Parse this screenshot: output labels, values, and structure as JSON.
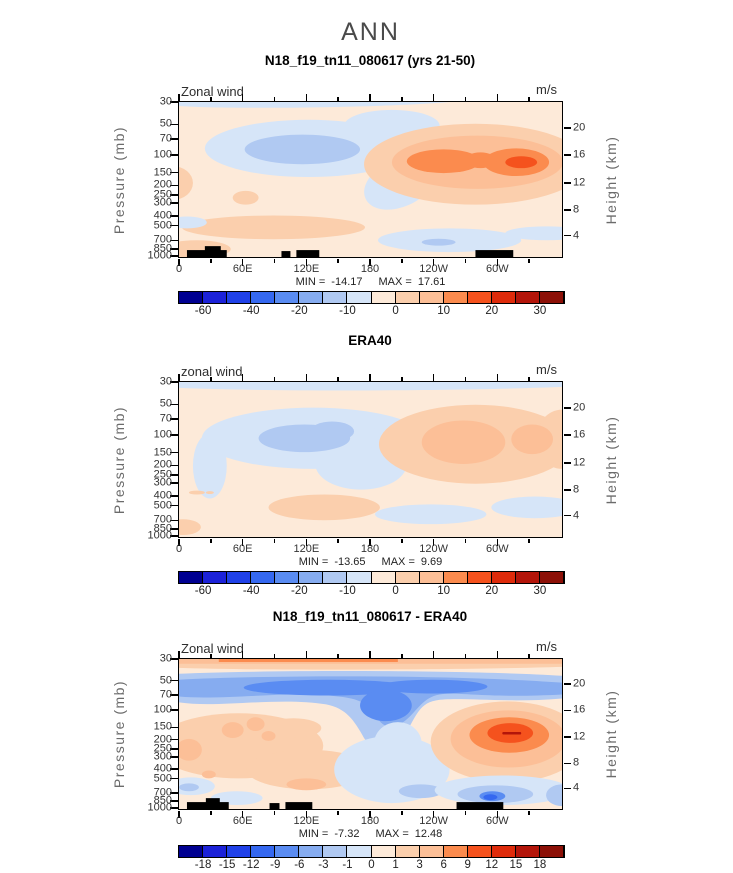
{
  "page_title": "ANN",
  "palette": [
    "#000091",
    "#1c22d8",
    "#2041e8",
    "#3568f0",
    "#5a8cf2",
    "#86acf0",
    "#b0c9f2",
    "#d6e5f8",
    "#fdead9",
    "#fbcfad",
    "#fcbf97",
    "#fb8b4e",
    "#f5521d",
    "#de2b0b",
    "#b3150a",
    "#8c1007"
  ],
  "panels": [
    {
      "title": "N18_f19_tn11_080617 (yrs 21-50)",
      "field_label": "Zonal wind",
      "units_label": "m/s",
      "ylabel_left": "Pressure (mb)",
      "ylabel_right": "Height (km)",
      "yticks_left": [
        "30",
        "50",
        "70",
        "100",
        "150",
        "200",
        "250",
        "300",
        "400",
        "500",
        "700",
        "850",
        "1000"
      ],
      "yticks_right": [
        "20",
        "16",
        "12",
        "8",
        "4"
      ],
      "xticks": [
        "0",
        "60E",
        "120E",
        "180",
        "120W",
        "60W"
      ],
      "min_label": "MIN =",
      "min_value": "-14.17",
      "max_label": "MAX =",
      "max_value": "17.61",
      "colorbar_labels": [
        "-60",
        "-40",
        "-20",
        "-10",
        "0",
        "10",
        "20",
        "30"
      ]
    },
    {
      "title": "ERA40",
      "field_label": "zonal wind",
      "units_label": "m/s",
      "ylabel_left": "Pressure (mb)",
      "ylabel_right": "Height (km)",
      "yticks_left": [
        "30",
        "50",
        "70",
        "100",
        "150",
        "200",
        "250",
        "300",
        "400",
        "500",
        "700",
        "850",
        "1000"
      ],
      "yticks_right": [
        "20",
        "16",
        "12",
        "8",
        "4"
      ],
      "xticks": [
        "0",
        "60E",
        "120E",
        "180",
        "120W",
        "60W"
      ],
      "min_label": "MIN =",
      "min_value": "-13.65",
      "max_label": "MAX =",
      "max_value": "9.69",
      "colorbar_labels": [
        "-60",
        "-40",
        "-20",
        "-10",
        "0",
        "10",
        "20",
        "30"
      ]
    },
    {
      "title": "N18_f19_tn11_080617 - ERA40",
      "field_label": "Zonal wind",
      "units_label": "m/s",
      "ylabel_left": "Pressure (mb)",
      "ylabel_right": "Height (km)",
      "yticks_left": [
        "30",
        "50",
        "70",
        "100",
        "150",
        "200",
        "250",
        "300",
        "400",
        "500",
        "700",
        "850",
        "1000"
      ],
      "yticks_right": [
        "20",
        "16",
        "12",
        "8",
        "4"
      ],
      "xticks": [
        "0",
        "60E",
        "120E",
        "180",
        "120W",
        "60W"
      ],
      "min_label": "MIN =",
      "min_value": "-7.32",
      "max_label": "MAX =",
      "max_value": "12.48",
      "colorbar_labels": [
        "-18",
        "-15",
        "-12",
        "-9",
        "-6",
        "-3",
        "-1",
        "0",
        "1",
        "3",
        "6",
        "9",
        "12",
        "15",
        "18"
      ]
    }
  ],
  "chart_data": [
    {
      "type": "contour",
      "season_title": "ANN",
      "title": "N18_f19_tn11_080617 (yrs 21-50)",
      "variable": "Zonal wind",
      "units": "m/s",
      "x_axis": {
        "ticks": [
          "0",
          "60E",
          "120E",
          "180",
          "120W",
          "60W"
        ],
        "range_deg": [
          0,
          360
        ]
      },
      "y_axis_left": {
        "label": "Pressure (mb)",
        "scale": "log",
        "ticks": [
          30,
          50,
          70,
          100,
          150,
          200,
          250,
          300,
          400,
          500,
          700,
          850,
          1000
        ]
      },
      "y_axis_right": {
        "label": "Height (km)",
        "ticks": [
          20,
          16,
          12,
          8,
          4
        ]
      },
      "min": -14.17,
      "max": 17.61,
      "contour_level_boundaries": [
        -60,
        -50,
        -40,
        -30,
        -20,
        -15,
        -10,
        -5,
        0,
        5,
        10,
        15,
        20,
        25,
        30
      ],
      "colorbar_tick_values": [
        -60,
        -40,
        -20,
        -10,
        0,
        10,
        20,
        30
      ],
      "features": [
        "easterly (blue) anomaly centered 60E-150E near 100-150 mb, reaching -10 to -14 m/s",
        "westerly jet (orange/red) from 180 across 120W-60W at 100-200 mb, double maximum, up to 17.61 m/s",
        "weak positive (pale peach) background elsewhere; light blue patches near surface around 120W-60W",
        "black surface-topography bars along 1000 mb near 0-40E, 100-130E and 90-60W"
      ]
    },
    {
      "type": "contour",
      "season_title": "ANN",
      "title": "ERA40",
      "variable": "zonal wind",
      "units": "m/s",
      "x_axis": {
        "ticks": [
          "0",
          "60E",
          "120E",
          "180",
          "120W",
          "60W"
        ],
        "range_deg": [
          0,
          360
        ]
      },
      "y_axis_left": {
        "label": "Pressure (mb)",
        "scale": "log",
        "ticks": [
          30,
          50,
          70,
          100,
          150,
          200,
          250,
          300,
          400,
          500,
          700,
          850,
          1000
        ]
      },
      "y_axis_right": {
        "label": "Height (km)",
        "ticks": [
          20,
          16,
          12,
          8,
          4
        ]
      },
      "min": -13.65,
      "max": 9.69,
      "contour_level_boundaries": [
        -60,
        -50,
        -40,
        -30,
        -20,
        -15,
        -10,
        -5,
        0,
        5,
        10,
        15,
        20,
        25,
        30
      ],
      "colorbar_tick_values": [
        -60,
        -40,
        -20,
        -10,
        0,
        10,
        20,
        30
      ],
      "features": [
        "light-blue band along the 30-40 mb top edge across all longitudes",
        "easterly (blue) region 20E-180 near 100-300 mb with core around 100E at 150 mb",
        "moderate westerly (orange) blobs near 150W-110W and 70W-40W at 100-250 mb, max 9.69 m/s",
        "no topography bars"
      ]
    },
    {
      "type": "contour",
      "season_title": "ANN",
      "title": "N18_f19_tn11_080617 - ERA40",
      "variable": "Zonal wind difference",
      "units": "m/s",
      "x_axis": {
        "ticks": [
          "0",
          "60E",
          "120E",
          "180",
          "120W",
          "60W"
        ],
        "range_deg": [
          0,
          360
        ]
      },
      "y_axis_left": {
        "label": "Pressure (mb)",
        "scale": "log",
        "ticks": [
          30,
          50,
          70,
          100,
          150,
          200,
          250,
          300,
          400,
          500,
          700,
          850,
          1000
        ]
      },
      "y_axis_right": {
        "label": "Height (km)",
        "ticks": [
          20,
          16,
          12,
          8,
          4
        ]
      },
      "min": -7.32,
      "max": 12.48,
      "contour_level_boundaries": [
        -18,
        -15,
        -12,
        -9,
        -6,
        -3,
        -1,
        0,
        1,
        3,
        6,
        9,
        12,
        15,
        18
      ],
      "colorbar_tick_values": [
        -18,
        -15,
        -12,
        -9,
        -6,
        -3,
        -1,
        0,
        1,
        3,
        6,
        9,
        12,
        15,
        18
      ],
      "features": [
        "orange positive band along the 30 mb top edge",
        "continuous negative (blue) band near 50-90 mb at all longitudes with tongue descending to ~250 mb around 120E-180",
        "strong positive (red) center near 90W-50W at 150 mb, max 12.48 m/s",
        "scattered weak positive (salmon) patches 0-150E below 100 mb; negative patches near surface around 120W-60W, min -7.32 m/s",
        "black surface-topography bars along 1000 mb near 0-40E, 100-130E and 90-60W"
      ]
    }
  ]
}
